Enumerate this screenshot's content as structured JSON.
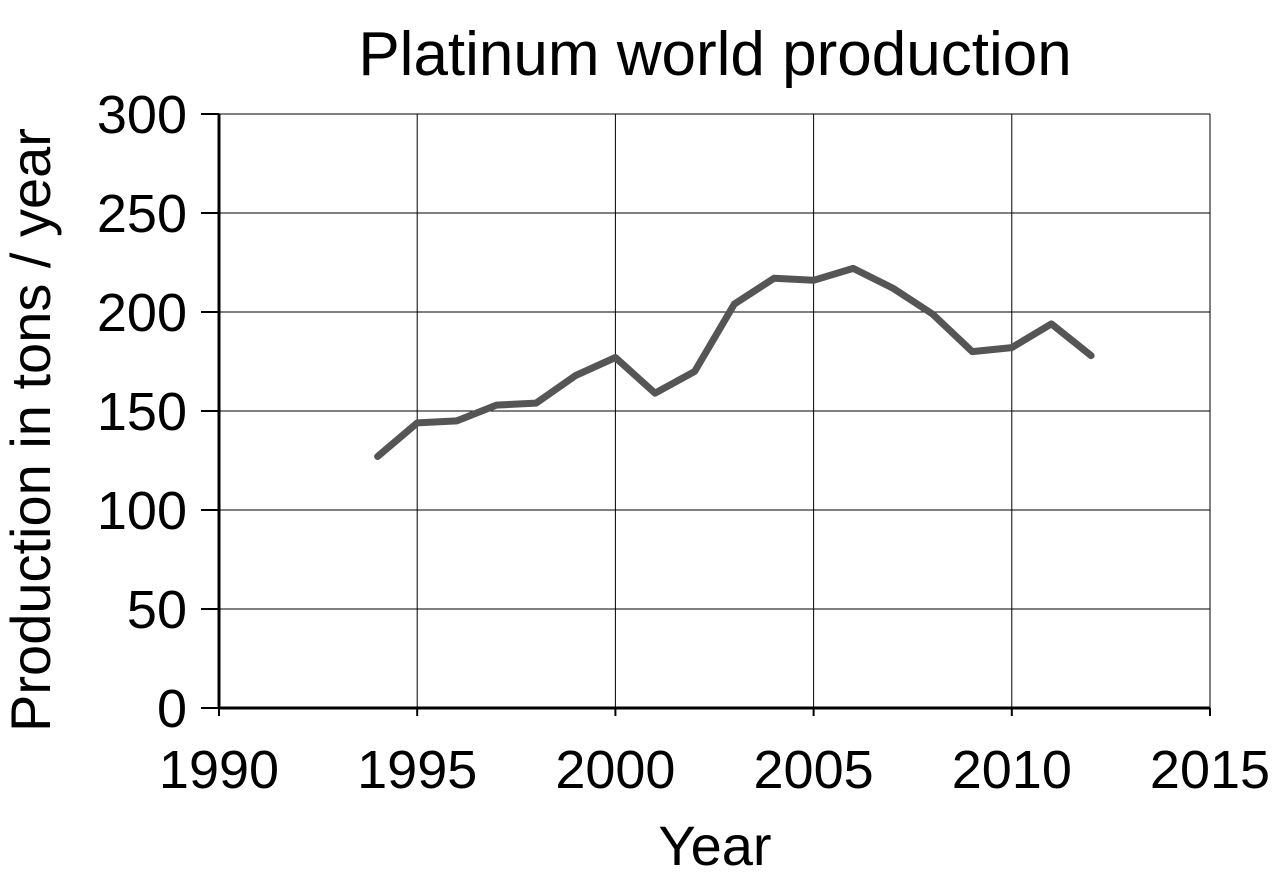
{
  "chart_data": {
    "type": "line",
    "title": "Platinum world production",
    "xlabel": "Year",
    "ylabel": "Production in tons / year",
    "xlim": [
      1990,
      2015
    ],
    "ylim": [
      0,
      300
    ],
    "x_ticks": [
      1990,
      1995,
      2000,
      2005,
      2010,
      2015
    ],
    "y_ticks": [
      0,
      50,
      100,
      150,
      200,
      250,
      300
    ],
    "grid": true,
    "legend": "none",
    "series": [
      {
        "color": "#555555",
        "x": [
          1994,
          1995,
          1996,
          1997,
          1998,
          1999,
          2000,
          2001,
          2002,
          2003,
          2004,
          2005,
          2006,
          2007,
          2008,
          2009,
          2010,
          2011,
          2012
        ],
        "y": [
          127,
          144,
          145,
          153,
          154,
          168,
          177,
          159,
          170,
          204,
          217,
          216,
          222,
          212,
          199,
          180,
          182,
          194,
          178
        ]
      }
    ]
  }
}
